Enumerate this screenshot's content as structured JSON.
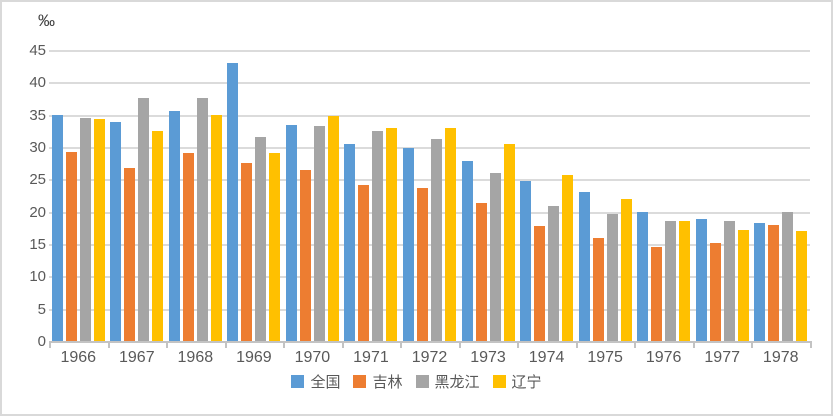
{
  "unit": "‰",
  "colors": {
    "series_blue": "#5B9BD5",
    "series_orange": "#ED7D31",
    "series_gray": "#A5A5A5",
    "series_yellow": "#FFC000",
    "gridline": "#DBDBDB",
    "axis": "#C3C3C3",
    "tick_text": "#595959",
    "unit_text": "#404040",
    "frame_border": "#D9D9D9"
  },
  "chart_data": {
    "type": "bar",
    "title": "",
    "ylabel": "‰",
    "xlabel": "",
    "ylim": [
      0,
      45
    ],
    "yticks": [
      0,
      5,
      10,
      15,
      20,
      25,
      30,
      35,
      40,
      45
    ],
    "grid": true,
    "legend_position": "bottom",
    "categories": [
      "1966",
      "1967",
      "1968",
      "1969",
      "1970",
      "1971",
      "1972",
      "1973",
      "1974",
      "1975",
      "1976",
      "1977",
      "1978"
    ],
    "series": [
      {
        "name": "全国",
        "color": "#5B9BD5",
        "values": [
          35.0,
          33.9,
          35.6,
          43.0,
          33.4,
          30.5,
          29.8,
          27.9,
          24.8,
          23.0,
          19.9,
          18.9,
          18.3
        ]
      },
      {
        "name": "吉林",
        "color": "#ED7D31",
        "values": [
          29.3,
          26.7,
          29.1,
          27.6,
          26.5,
          24.2,
          23.6,
          21.4,
          17.8,
          15.9,
          14.5,
          15.1,
          18.0
        ]
      },
      {
        "name": "黑龙江",
        "color": "#A5A5A5",
        "values": [
          34.5,
          37.5,
          37.6,
          31.5,
          33.2,
          32.5,
          31.3,
          26.0,
          20.8,
          19.6,
          18.6,
          18.5,
          20.0
        ]
      },
      {
        "name": "辽宁",
        "color": "#FFC000",
        "values": [
          34.3,
          32.4,
          35.0,
          29.0,
          34.8,
          33.0,
          33.0,
          30.5,
          25.7,
          22.0,
          18.6,
          17.2,
          17.0
        ]
      }
    ]
  }
}
